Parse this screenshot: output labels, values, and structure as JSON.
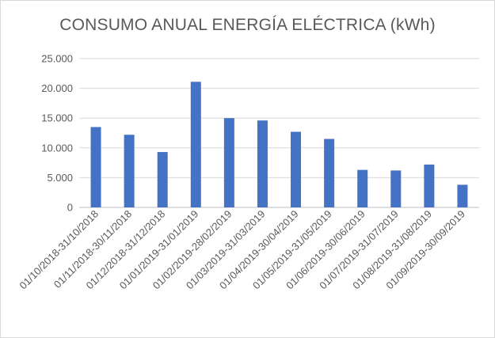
{
  "chart_data": {
    "type": "bar",
    "title": "CONSUMO ANUAL ENERGÍA ELÉCTRICA (kWh)",
    "xlabel": "",
    "ylabel": "",
    "categories": [
      "01/10/2018-31/10/2018",
      "01/11/2018-30/11/2018",
      "01/12/2018-31/12/2018",
      "01/01/2019-31/01/2019",
      "01/02/2019-28/02/2019",
      "01/03/2019-31/03/2019",
      "01/04/2019-30/04/2019",
      "01/05/2019-31/05/2019",
      "01/06/2019-30/06/2019",
      "01/07/2019-31/07/2019",
      "01/08/2019-31/08/2019",
      "01/09/2019-30/09/2019"
    ],
    "values": [
      13500,
      12200,
      9300,
      21100,
      15000,
      14600,
      12700,
      11500,
      6300,
      6200,
      7200,
      3800
    ],
    "ylim": [
      0,
      25000
    ],
    "yticks": [
      0,
      5000,
      10000,
      15000,
      20000,
      25000
    ],
    "ytick_labels": [
      "0",
      "5.000",
      "10.000",
      "15.000",
      "20.000",
      "25.000"
    ],
    "grid": true,
    "legend": "none",
    "bar_color": "#4472c4"
  }
}
